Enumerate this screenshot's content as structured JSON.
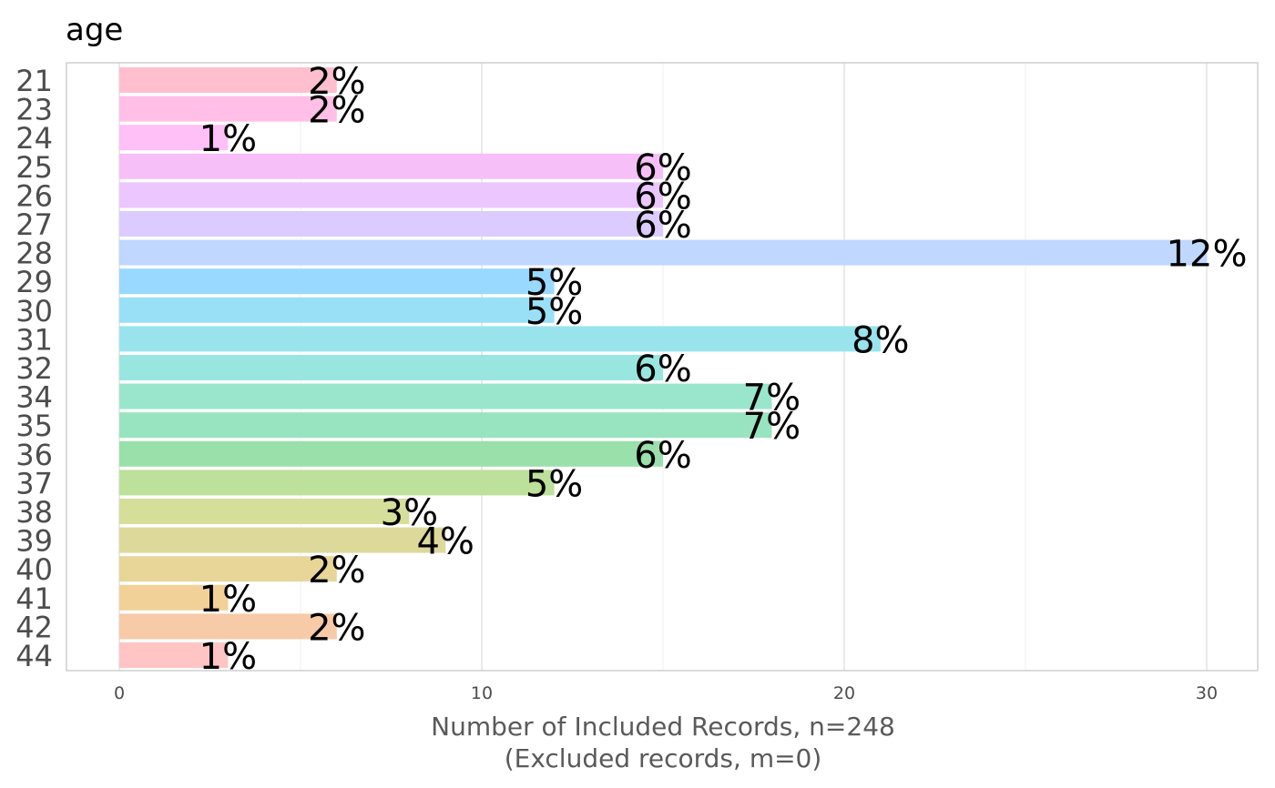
{
  "chart_data": {
    "type": "bar",
    "orientation": "horizontal",
    "title": "age",
    "xlabel_line1": "Number of Included Records, n=248",
    "xlabel_line2": "(Excluded records, m=0)",
    "ylabel": "",
    "xlim": [
      0,
      31
    ],
    "x_ticks": [
      0,
      10,
      20,
      30
    ],
    "grid": true,
    "categories": [
      "21",
      "23",
      "24",
      "25",
      "26",
      "27",
      "28",
      "29",
      "30",
      "31",
      "32",
      "34",
      "35",
      "36",
      "37",
      "38",
      "39",
      "40",
      "41",
      "42",
      "44"
    ],
    "values": [
      6,
      6,
      3,
      15,
      15,
      15,
      30,
      12,
      12,
      21,
      15,
      18,
      18,
      15,
      12,
      8,
      9,
      6,
      3,
      6,
      3
    ],
    "data_labels": [
      "2%",
      "2%",
      "1%",
      "6%",
      "6%",
      "6%",
      "12%",
      "5%",
      "5%",
      "8%",
      "6%",
      "7%",
      "7%",
      "6%",
      "5%",
      "3%",
      "4%",
      "2%",
      "1%",
      "2%",
      "1%"
    ],
    "colors": [
      "#ffbfcf",
      "#ffbfe6",
      "#ffbff7",
      "#f7bff7",
      "#ecc6ff",
      "#dccbff",
      "#c0d7ff",
      "#99d9ff",
      "#99e0f7",
      "#99e4ec",
      "#99e6e0",
      "#99e6cc",
      "#99e4c0",
      "#99e0aa",
      "#bde09a",
      "#d6df9a",
      "#ddd99a",
      "#e8d699",
      "#f2d199",
      "#f7caa8",
      "#ffc4c4"
    ]
  }
}
